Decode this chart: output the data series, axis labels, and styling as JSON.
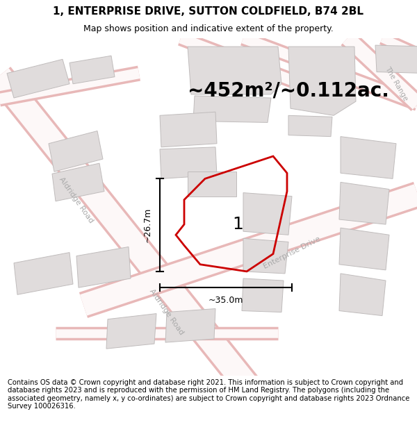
{
  "title": "1, ENTERPRISE DRIVE, SUTTON COLDFIELD, B74 2BL",
  "subtitle": "Map shows position and indicative extent of the property.",
  "area_text": "~452m²/~0.112ac.",
  "label_number": "1",
  "dim_height": "~26.7m",
  "dim_width": "~35.0m",
  "footer": "Contains OS data © Crown copyright and database right 2021. This information is subject to Crown copyright and database rights 2023 and is reproduced with the permission of HM Land Registry. The polygons (including the associated geometry, namely x, y co-ordinates) are subject to Crown copyright and database rights 2023 Ordnance Survey 100026316.",
  "bg_color": "#ffffff",
  "map_bg": "#ffffff",
  "road_fill": "#f5e8e8",
  "road_outline": "#e8b8b8",
  "building_color": "#e0dcdc",
  "building_outline": "#b8b4b4",
  "property_outline": "#cc0000",
  "title_fontsize": 11,
  "subtitle_fontsize": 9,
  "area_fontsize": 20,
  "footer_fontsize": 7.2,
  "road_label_color": "#aaaaaa",
  "dim_label_fontsize": 9,
  "number_label_fontsize": 18
}
